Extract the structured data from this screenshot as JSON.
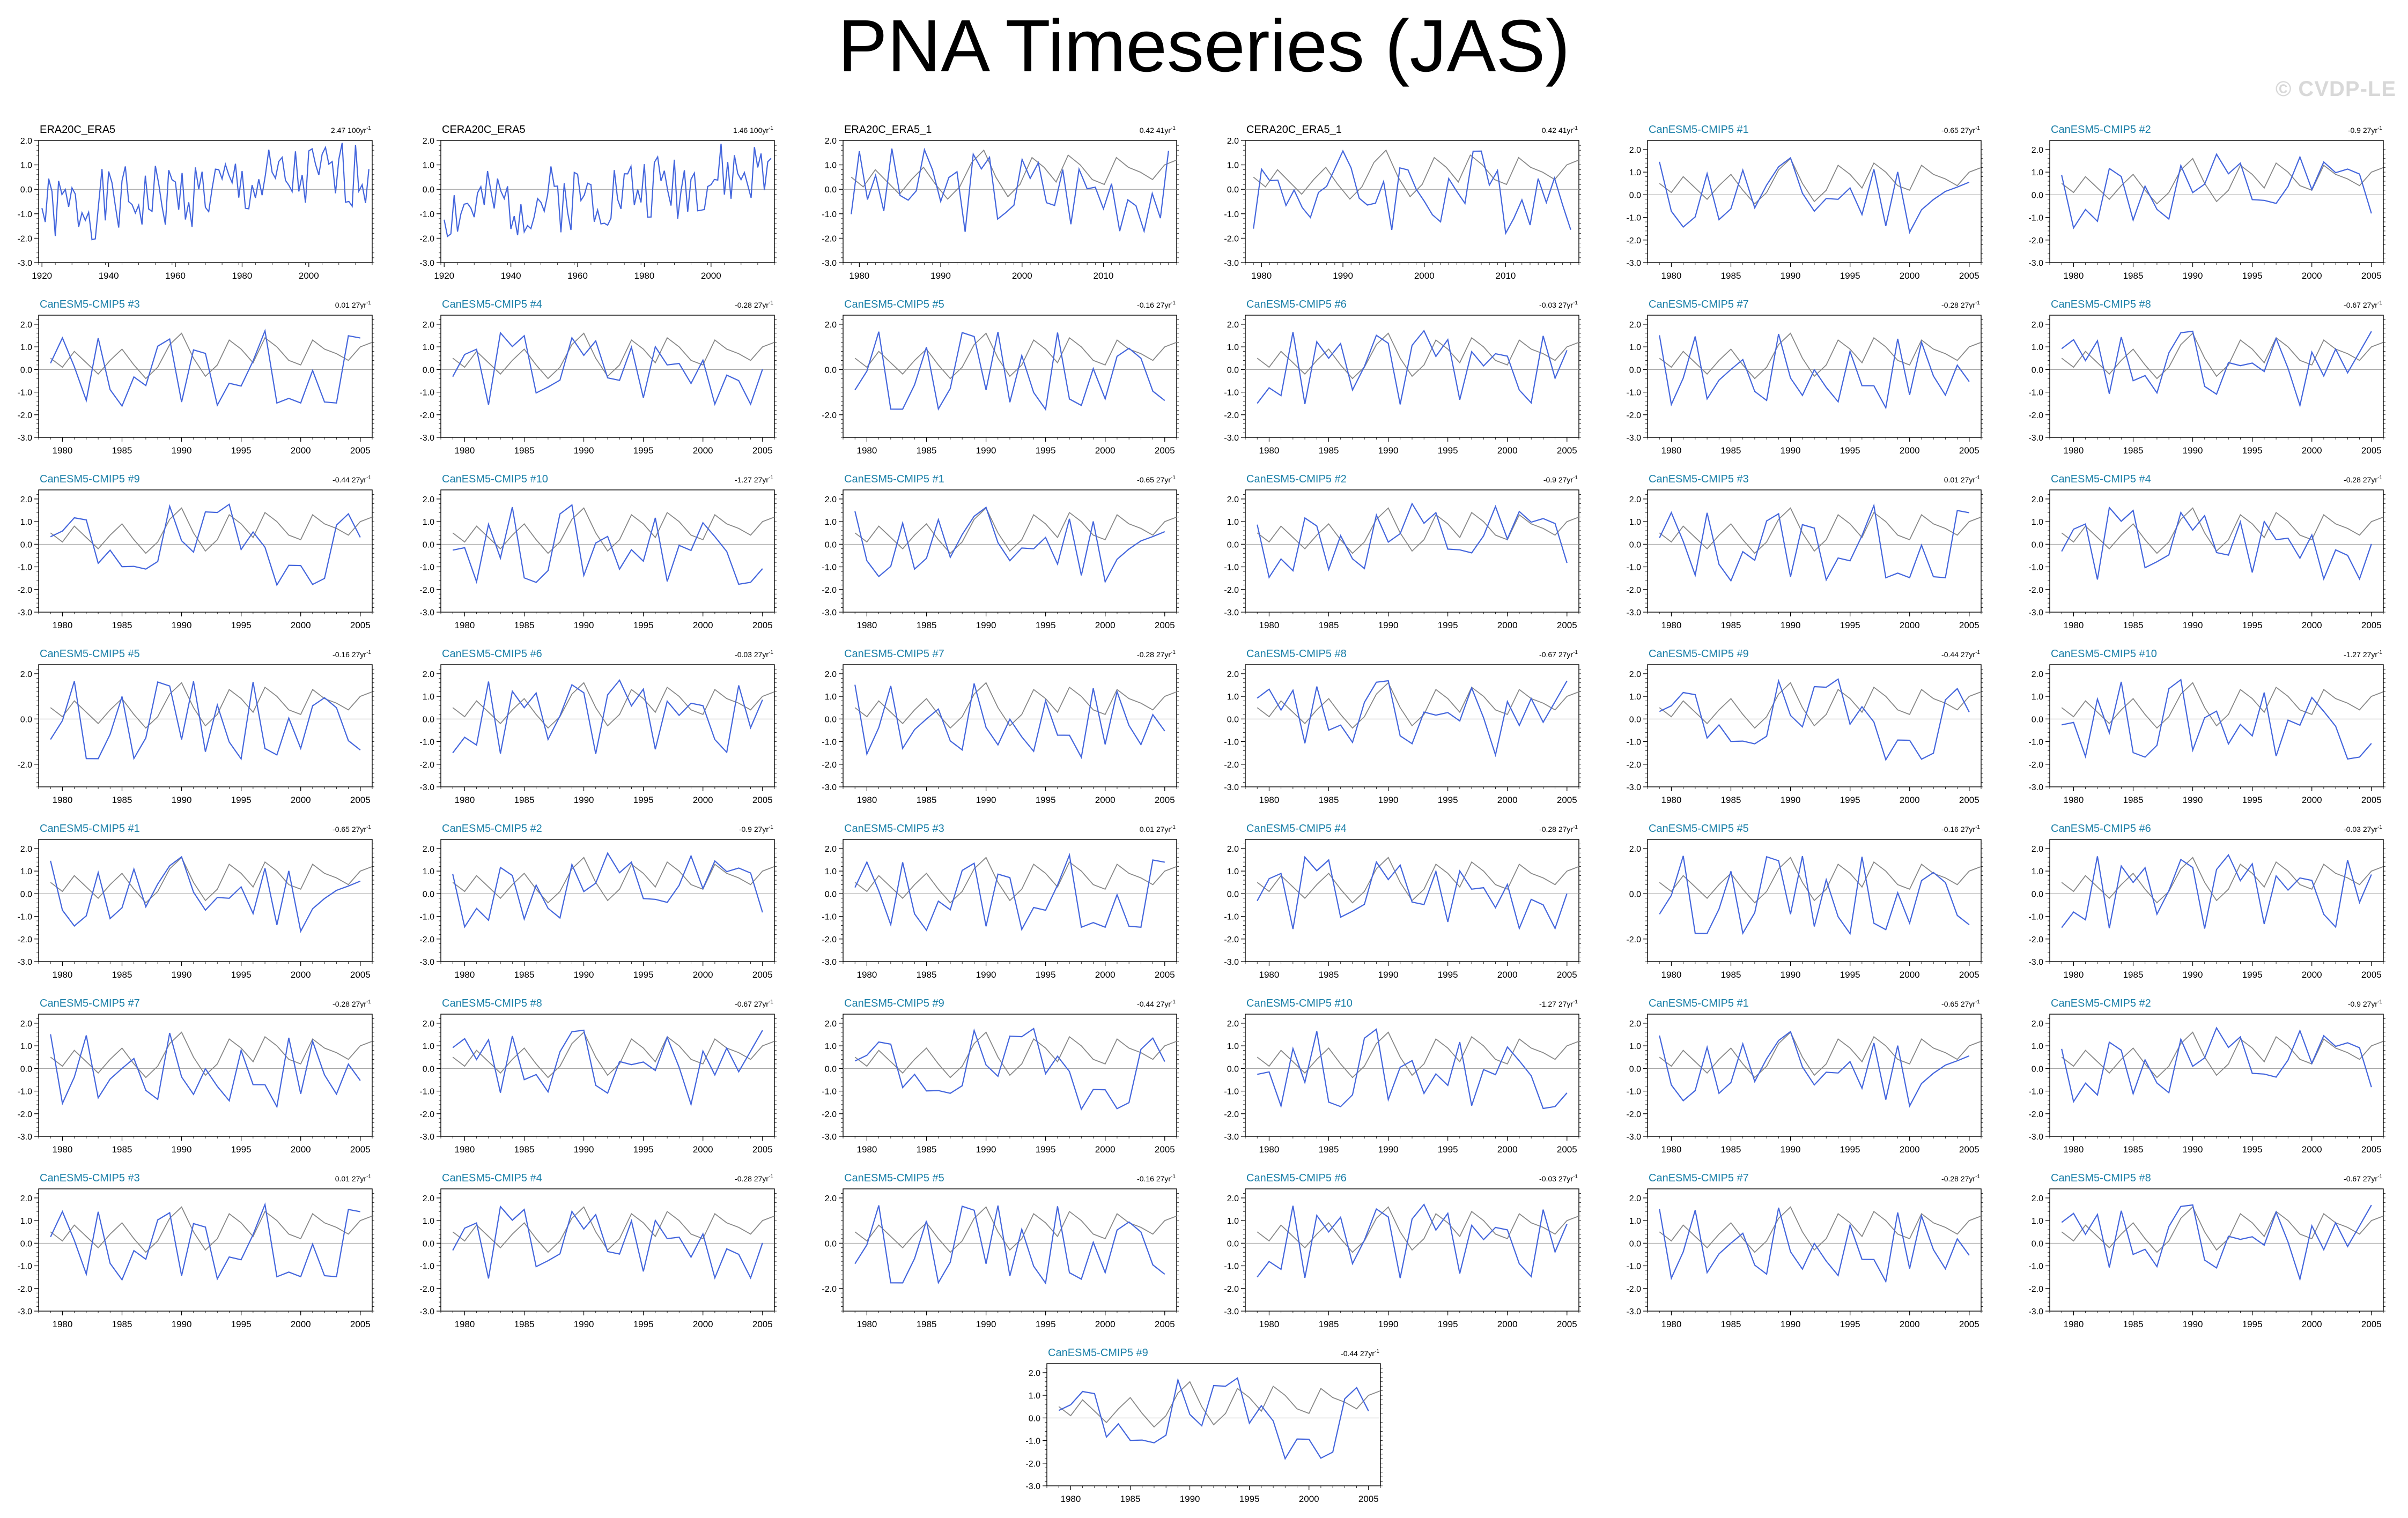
{
  "title": "PNA Timeseries (JAS)",
  "watermark": "© CVDP-LE",
  "colors": {
    "obs": "#4466dd",
    "model_mean": "#888888",
    "zero_line": "#999999",
    "name_obs": "#000000",
    "name_model": "#1a7fa8"
  },
  "chart_data": {
    "type": "line",
    "ylabel": "",
    "xlabel": "",
    "panels": [
      {
        "name": "ERA20C_ERA5",
        "trend": "2.47",
        "trend_unit": "100yr",
        "xlim": [
          1919,
          2019
        ],
        "ylim": [
          -3,
          2
        ],
        "xticks": [
          1920,
          1940,
          1960,
          1980,
          2000
        ],
        "yticks": [
          "2.0",
          "1.0",
          "0.0",
          "-1.0",
          "-2.0",
          "-3.0"
        ],
        "mean_series": false,
        "seed": 1
      },
      {
        "name": "CERA20C_ERA5",
        "trend": "1.46",
        "trend_unit": "100yr",
        "xlim": [
          1919,
          2019
        ],
        "ylim": [
          -3,
          2
        ],
        "xticks": [
          1920,
          1940,
          1960,
          1980,
          2000
        ],
        "yticks": [
          "2.0",
          "1.0",
          "0.0",
          "-1.0",
          "-2.0",
          "-3.0"
        ],
        "mean_series": false,
        "seed": 2
      },
      {
        "name": "ERA20C_ERA5_1",
        "trend": "0.42",
        "trend_unit": "41yr",
        "xlim": [
          1978,
          2019
        ],
        "ylim": [
          -3,
          2
        ],
        "xticks": [
          1980,
          1990,
          2000,
          2010
        ],
        "yticks": [
          "2.0",
          "1.0",
          "0.0",
          "-1.0",
          "-2.0",
          "-3.0"
        ],
        "mean_series": true,
        "seed": 3
      },
      {
        "name": "CERA20C_ERA5_1",
        "trend": "0.42",
        "trend_unit": "41yr",
        "xlim": [
          1978,
          2019
        ],
        "ylim": [
          -3,
          2
        ],
        "xticks": [
          1980,
          1990,
          2000,
          2010
        ],
        "yticks": [
          "2.0",
          "1.0",
          "0.0",
          "-1.0",
          "-2.0",
          "-3.0"
        ],
        "mean_series": true,
        "seed": 4
      },
      {
        "name": "CanESM5-CMIP5 #1",
        "trend": "-0.65",
        "trend_unit": "27yr",
        "seed": 11
      },
      {
        "name": "CanESM5-CMIP5 #2",
        "trend": "-0.9",
        "trend_unit": "27yr",
        "seed": 12
      },
      {
        "name": "CanESM5-CMIP5 #3",
        "trend": "0.01",
        "trend_unit": "27yr",
        "seed": 13
      },
      {
        "name": "CanESM5-CMIP5 #4",
        "trend": "-0.28",
        "trend_unit": "27yr",
        "seed": 14
      },
      {
        "name": "CanESM5-CMIP5 #5",
        "trend": "-0.16",
        "trend_unit": "27yr",
        "seed": 15,
        "yticks": [
          "2.0",
          "0.0",
          "-2.0"
        ]
      },
      {
        "name": "CanESM5-CMIP5 #6",
        "trend": "-0.03",
        "trend_unit": "27yr",
        "seed": 16
      },
      {
        "name": "CanESM5-CMIP5 #7",
        "trend": "-0.28",
        "trend_unit": "27yr",
        "seed": 17
      },
      {
        "name": "CanESM5-CMIP5 #8",
        "trend": "-0.67",
        "trend_unit": "27yr",
        "seed": 18
      },
      {
        "name": "CanESM5-CMIP5 #9",
        "trend": "-0.44",
        "trend_unit": "27yr",
        "seed": 19
      },
      {
        "name": "CanESM5-CMIP5 #10",
        "trend": "-1.27",
        "trend_unit": "27yr",
        "seed": 20
      },
      {
        "name": "CanESM5-CMIP5 #1",
        "trend": "-0.65",
        "trend_unit": "27yr",
        "seed": 11
      },
      {
        "name": "CanESM5-CMIP5 #2",
        "trend": "-0.9",
        "trend_unit": "27yr",
        "seed": 12
      },
      {
        "name": "CanESM5-CMIP5 #3",
        "trend": "0.01",
        "trend_unit": "27yr",
        "seed": 13
      },
      {
        "name": "CanESM5-CMIP5 #4",
        "trend": "-0.28",
        "trend_unit": "27yr",
        "seed": 14
      },
      {
        "name": "CanESM5-CMIP5 #5",
        "trend": "-0.16",
        "trend_unit": "27yr",
        "seed": 15,
        "yticks": [
          "2.0",
          "0.0",
          "-2.0"
        ]
      },
      {
        "name": "CanESM5-CMIP5 #6",
        "trend": "-0.03",
        "trend_unit": "27yr",
        "seed": 16
      },
      {
        "name": "CanESM5-CMIP5 #7",
        "trend": "-0.28",
        "trend_unit": "27yr",
        "seed": 17
      },
      {
        "name": "CanESM5-CMIP5 #8",
        "trend": "-0.67",
        "trend_unit": "27yr",
        "seed": 18
      },
      {
        "name": "CanESM5-CMIP5 #9",
        "trend": "-0.44",
        "trend_unit": "27yr",
        "seed": 19
      },
      {
        "name": "CanESM5-CMIP5 #10",
        "trend": "-1.27",
        "trend_unit": "27yr",
        "seed": 20
      },
      {
        "name": "CanESM5-CMIP5 #1",
        "trend": "-0.65",
        "trend_unit": "27yr",
        "seed": 11
      },
      {
        "name": "CanESM5-CMIP5 #2",
        "trend": "-0.9",
        "trend_unit": "27yr",
        "seed": 12
      },
      {
        "name": "CanESM5-CMIP5 #3",
        "trend": "0.01",
        "trend_unit": "27yr",
        "seed": 13
      },
      {
        "name": "CanESM5-CMIP5 #4",
        "trend": "-0.28",
        "trend_unit": "27yr",
        "seed": 14
      },
      {
        "name": "CanESM5-CMIP5 #5",
        "trend": "-0.16",
        "trend_unit": "27yr",
        "seed": 15,
        "yticks": [
          "2.0",
          "0.0",
          "-2.0"
        ]
      },
      {
        "name": "CanESM5-CMIP5 #6",
        "trend": "-0.03",
        "trend_unit": "27yr",
        "seed": 16
      },
      {
        "name": "CanESM5-CMIP5 #7",
        "trend": "-0.28",
        "trend_unit": "27yr",
        "seed": 17
      },
      {
        "name": "CanESM5-CMIP5 #8",
        "trend": "-0.67",
        "trend_unit": "27yr",
        "seed": 18
      },
      {
        "name": "CanESM5-CMIP5 #9",
        "trend": "-0.44",
        "trend_unit": "27yr",
        "seed": 19
      },
      {
        "name": "CanESM5-CMIP5 #10",
        "trend": "-1.27",
        "trend_unit": "27yr",
        "seed": 20
      },
      {
        "name": "CanESM5-CMIP5 #1",
        "trend": "-0.65",
        "trend_unit": "27yr",
        "seed": 11
      },
      {
        "name": "CanESM5-CMIP5 #2",
        "trend": "-0.9",
        "trend_unit": "27yr",
        "seed": 12
      },
      {
        "name": "CanESM5-CMIP5 #3",
        "trend": "0.01",
        "trend_unit": "27yr",
        "seed": 13
      },
      {
        "name": "CanESM5-CMIP5 #4",
        "trend": "-0.28",
        "trend_unit": "27yr",
        "seed": 14
      },
      {
        "name": "CanESM5-CMIP5 #5",
        "trend": "-0.16",
        "trend_unit": "27yr",
        "seed": 15,
        "yticks": [
          "2.0",
          "0.0",
          "-2.0"
        ]
      },
      {
        "name": "CanESM5-CMIP5 #6",
        "trend": "-0.03",
        "trend_unit": "27yr",
        "seed": 16
      },
      {
        "name": "CanESM5-CMIP5 #7",
        "trend": "-0.28",
        "trend_unit": "27yr",
        "seed": 17
      },
      {
        "name": "CanESM5-CMIP5 #8",
        "trend": "-0.67",
        "trend_unit": "27yr",
        "seed": 18
      },
      {
        "name": "CanESM5-CMIP5 #9",
        "trend": "-0.44",
        "trend_unit": "27yr",
        "seed": 19
      }
    ],
    "model_defaults": {
      "xlim": [
        1978,
        2006
      ],
      "ylim": [
        -3,
        2.4
      ],
      "xticks": [
        1980,
        1985,
        1990,
        1995,
        2000,
        2005
      ],
      "yticks": [
        "2.0",
        "1.0",
        "0.0",
        "-1.0",
        "-2.0",
        "-3.0"
      ],
      "mean_series": true
    },
    "mean_values": [
      0.5,
      0.1,
      0.8,
      0.3,
      -0.2,
      0.4,
      0.9,
      0.2,
      -0.4,
      0.1,
      1.1,
      1.6,
      0.5,
      -0.3,
      0.2,
      1.3,
      0.9,
      0.3,
      1.4,
      1.0,
      0.4,
      0.2,
      1.3,
      0.9,
      0.7,
      0.4,
      1.0,
      1.2
    ]
  }
}
